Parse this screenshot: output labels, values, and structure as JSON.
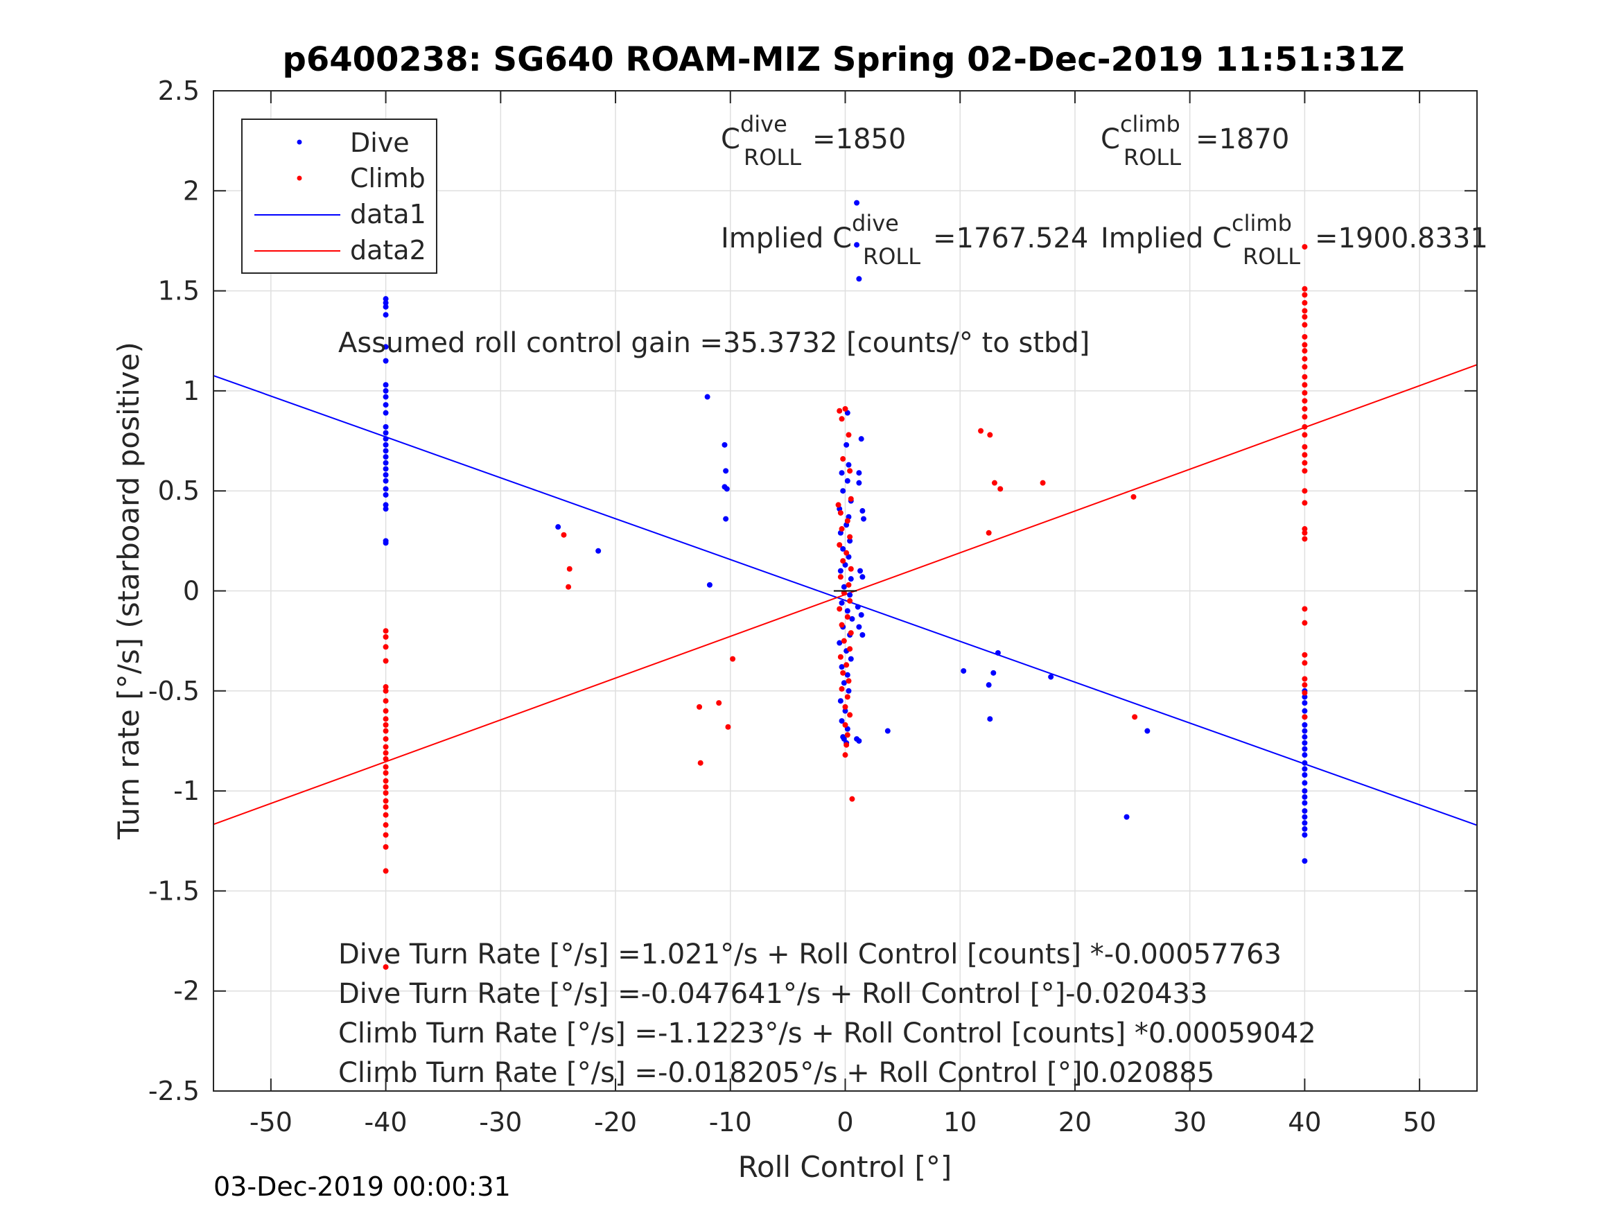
{
  "footer_timestamp": "03-Dec-2019 00:00:31",
  "chart_data": {
    "type": "scatter",
    "title": "p6400238: SG640 ROAM-MIZ Spring 02-Dec-2019 11:51:31Z",
    "xlabel": "Roll Control [°]",
    "ylabel": "Turn rate [°/s] (starboard positive)",
    "xlim": [
      -55,
      55
    ],
    "ylim": [
      -2.5,
      2.5
    ],
    "xticks": [
      -50,
      -40,
      -30,
      -20,
      -10,
      0,
      10,
      20,
      30,
      40,
      50
    ],
    "xtick_labels": [
      "-50",
      "-40",
      "-30",
      "-20",
      "-10",
      "0",
      "10",
      "20",
      "30",
      "40",
      "50"
    ],
    "yticks": [
      2.5,
      2,
      1.5,
      1,
      0.5,
      0,
      -0.5,
      -1,
      -1.5,
      -2,
      -2.5
    ],
    "ytick_labels": [
      "2.5",
      "2",
      "1.5",
      "1",
      "0.5",
      "0",
      "-0.5",
      "-1",
      "-1.5",
      "-2",
      "-2.5"
    ],
    "grid": true,
    "legend_position": "top-left",
    "colors": {
      "dive": "#0000ff",
      "climb": "#ff0000"
    },
    "legend": [
      {
        "label": "Dive",
        "color": "#0000ff",
        "kind": "marker"
      },
      {
        "label": "Climb",
        "color": "#ff0000",
        "kind": "marker"
      },
      {
        "label": "data1",
        "color": "#0000ff",
        "kind": "line"
      },
      {
        "label": "data2",
        "color": "#ff0000",
        "kind": "line"
      }
    ],
    "annotations": {
      "c_dive": {
        "base": "C",
        "sup": "dive",
        "sub": "ROLL",
        "value": "=1850"
      },
      "c_climb": {
        "base": "C",
        "sup": "climb",
        "sub": "ROLL",
        "value": "=1870"
      },
      "implied_dive": {
        "prefix": "Implied C",
        "sup": "dive",
        "sub": "ROLL",
        "value": "=1767.524"
      },
      "implied_climb": {
        "prefix": "Implied C",
        "sup": "climb",
        "sub": "ROLL",
        "value": "=1900.8331"
      },
      "gain": "Assumed roll control gain =35.3732 [counts/° to stbd]",
      "eq_dive_counts": "Dive Turn Rate [°/s] =1.021°/s + Roll Control [counts] *-0.00057763",
      "eq_dive_deg": "Dive Turn Rate [°/s] =-0.047641°/s + Roll Control [°]-0.020433",
      "eq_climb_counts": "Climb Turn Rate [°/s] =-1.1223°/s + Roll Control [counts] *0.00059042",
      "eq_climb_deg": "Climb Turn Rate [°/s] =-0.018205°/s + Roll Control [°]0.020885"
    },
    "fit_lines": [
      {
        "name": "data1",
        "color": "#0000ff",
        "intercept": -0.047641,
        "slope": -0.020433
      },
      {
        "name": "data2",
        "color": "#ff0000",
        "intercept": -0.018205,
        "slope": 0.020885
      }
    ],
    "series": [
      {
        "name": "Dive",
        "color": "#0000ff",
        "points": [
          [
            -40,
            1.46
          ],
          [
            -40,
            1.44
          ],
          [
            -40,
            1.42
          ],
          [
            -40,
            1.38
          ],
          [
            -40,
            1.22
          ],
          [
            -40,
            1.15
          ],
          [
            -40,
            1.03
          ],
          [
            -40,
            1.0
          ],
          [
            -40,
            0.97
          ],
          [
            -40,
            0.93
          ],
          [
            -40,
            0.89
          ],
          [
            -40,
            0.82
          ],
          [
            -40,
            0.79
          ],
          [
            -40,
            0.76
          ],
          [
            -40,
            0.73
          ],
          [
            -40,
            0.7
          ],
          [
            -40,
            0.67
          ],
          [
            -40,
            0.64
          ],
          [
            -40,
            0.61
          ],
          [
            -40,
            0.58
          ],
          [
            -40,
            0.55
          ],
          [
            -40,
            0.51
          ],
          [
            -40,
            0.48
          ],
          [
            -40,
            0.43
          ],
          [
            -40,
            0.41
          ],
          [
            -40,
            0.25
          ],
          [
            -40,
            0.24
          ],
          [
            -25,
            0.32
          ],
          [
            -21.5,
            0.2
          ],
          [
            -12,
            0.97
          ],
          [
            -11.8,
            0.03
          ],
          [
            -10.5,
            0.73
          ],
          [
            -10.4,
            0.6
          ],
          [
            -10.5,
            0.52
          ],
          [
            -10.3,
            0.51
          ],
          [
            -10.4,
            0.36
          ],
          [
            0.2,
            0.89
          ],
          [
            0.1,
            0.73
          ],
          [
            0.3,
            0.63
          ],
          [
            -0.3,
            0.59
          ],
          [
            0.2,
            0.55
          ],
          [
            -0.2,
            0.5
          ],
          [
            0.5,
            0.45
          ],
          [
            -0.5,
            0.41
          ],
          [
            0.3,
            0.37
          ],
          [
            0.1,
            0.33
          ],
          [
            -0.4,
            0.29
          ],
          [
            0.4,
            0.25
          ],
          [
            -0.2,
            0.21
          ],
          [
            0.3,
            0.17
          ],
          [
            0.0,
            0.13
          ],
          [
            -0.4,
            0.1
          ],
          [
            0.5,
            0.06
          ],
          [
            -0.1,
            0.02
          ],
          [
            0.4,
            -0.02
          ],
          [
            -0.3,
            -0.06
          ],
          [
            0.2,
            -0.1
          ],
          [
            0.6,
            -0.14
          ],
          [
            -0.2,
            -0.18
          ],
          [
            0.4,
            -0.22
          ],
          [
            -0.5,
            -0.26
          ],
          [
            0.1,
            -0.3
          ],
          [
            0.5,
            -0.34
          ],
          [
            -0.3,
            -0.38
          ],
          [
            0.2,
            -0.42
          ],
          [
            -0.1,
            -0.46
          ],
          [
            0.3,
            -0.5
          ],
          [
            -0.4,
            -0.55
          ],
          [
            0.0,
            -0.6
          ],
          [
            -0.3,
            -0.65
          ],
          [
            0.2,
            -0.69
          ],
          [
            -0.2,
            -0.73
          ],
          [
            0.1,
            -0.76
          ],
          [
            -0.1,
            -0.74
          ],
          [
            1.0,
            1.94
          ],
          [
            1.0,
            1.73
          ],
          [
            1.2,
            1.56
          ],
          [
            1.4,
            0.76
          ],
          [
            1.2,
            0.59
          ],
          [
            1.2,
            0.54
          ],
          [
            1.5,
            0.4
          ],
          [
            1.6,
            0.36
          ],
          [
            1.3,
            0.1
          ],
          [
            1.5,
            0.07
          ],
          [
            1.1,
            -0.08
          ],
          [
            1.4,
            -0.12
          ],
          [
            1.2,
            -0.18
          ],
          [
            1.5,
            -0.22
          ],
          [
            1.0,
            -0.74
          ],
          [
            1.2,
            -0.75
          ],
          [
            3.7,
            -0.7
          ],
          [
            10.3,
            -0.4
          ],
          [
            12.5,
            -0.47
          ],
          [
            12.6,
            -0.64
          ],
          [
            12.9,
            -0.41
          ],
          [
            13.3,
            -0.31
          ],
          [
            17.9,
            -0.43
          ],
          [
            24.5,
            -1.13
          ],
          [
            26.3,
            -0.7
          ],
          [
            40,
            -0.5
          ],
          [
            40,
            -0.53
          ],
          [
            40,
            -0.56
          ],
          [
            40,
            -0.6
          ],
          [
            40,
            -0.63
          ],
          [
            40,
            -0.67
          ],
          [
            40,
            -0.7
          ],
          [
            40,
            -0.73
          ],
          [
            40,
            -0.76
          ],
          [
            40,
            -0.79
          ],
          [
            40,
            -0.82
          ],
          [
            40,
            -0.86
          ],
          [
            40,
            -0.89
          ],
          [
            40,
            -0.92
          ],
          [
            40,
            -0.96
          ],
          [
            40,
            -1.0
          ],
          [
            40,
            -1.03
          ],
          [
            40,
            -1.06
          ],
          [
            40,
            -1.1
          ],
          [
            40,
            -1.13
          ],
          [
            40,
            -1.16
          ],
          [
            40,
            -1.19
          ],
          [
            40,
            -1.22
          ],
          [
            40,
            -1.35
          ]
        ]
      },
      {
        "name": "Climb",
        "color": "#ff0000",
        "points": [
          [
            -40,
            -0.2
          ],
          [
            -40,
            -0.23
          ],
          [
            -40,
            -0.28
          ],
          [
            -40,
            -0.35
          ],
          [
            -40,
            -0.48
          ],
          [
            -40,
            -0.5
          ],
          [
            -40,
            -0.55
          ],
          [
            -40,
            -0.6
          ],
          [
            -40,
            -0.64
          ],
          [
            -40,
            -0.67
          ],
          [
            -40,
            -0.7
          ],
          [
            -40,
            -0.74
          ],
          [
            -40,
            -0.78
          ],
          [
            -40,
            -0.81
          ],
          [
            -40,
            -0.84
          ],
          [
            -40,
            -0.88
          ],
          [
            -40,
            -0.91
          ],
          [
            -40,
            -0.95
          ],
          [
            -40,
            -0.98
          ],
          [
            -40,
            -1.01
          ],
          [
            -40,
            -1.05
          ],
          [
            -40,
            -1.08
          ],
          [
            -40,
            -1.12
          ],
          [
            -40,
            -1.17
          ],
          [
            -40,
            -1.22
          ],
          [
            -40,
            -1.28
          ],
          [
            -40,
            -1.4
          ],
          [
            -40,
            -1.88
          ],
          [
            -24.5,
            0.28
          ],
          [
            -24,
            0.11
          ],
          [
            -24.1,
            0.02
          ],
          [
            -12.7,
            -0.58
          ],
          [
            -12.6,
            -0.86
          ],
          [
            -11,
            -0.56
          ],
          [
            -10.2,
            -0.68
          ],
          [
            -9.8,
            -0.34
          ],
          [
            -0.5,
            0.9
          ],
          [
            0.0,
            0.91
          ],
          [
            -0.3,
            0.86
          ],
          [
            0.3,
            0.78
          ],
          [
            -0.2,
            0.66
          ],
          [
            0.4,
            0.6
          ],
          [
            -0.6,
            0.43
          ],
          [
            0.5,
            0.46
          ],
          [
            -0.4,
            0.39
          ],
          [
            0.2,
            0.35
          ],
          [
            -0.3,
            0.31
          ],
          [
            0.4,
            0.27
          ],
          [
            -0.5,
            0.23
          ],
          [
            0.1,
            0.19
          ],
          [
            -0.2,
            0.15
          ],
          [
            0.5,
            0.11
          ],
          [
            -0.4,
            0.07
          ],
          [
            0.3,
            0.03
          ],
          [
            -0.1,
            -0.01
          ],
          [
            0.4,
            -0.05
          ],
          [
            -0.5,
            -0.09
          ],
          [
            0.2,
            -0.13
          ],
          [
            -0.3,
            -0.17
          ],
          [
            0.5,
            -0.21
          ],
          [
            -0.1,
            -0.25
          ],
          [
            0.4,
            -0.29
          ],
          [
            -0.4,
            -0.33
          ],
          [
            0.1,
            -0.37
          ],
          [
            -0.2,
            -0.41
          ],
          [
            0.3,
            -0.45
          ],
          [
            -0.3,
            -0.49
          ],
          [
            0.2,
            -0.53
          ],
          [
            0.0,
            -0.58
          ],
          [
            0.4,
            -0.62
          ],
          [
            0.0,
            -0.67
          ],
          [
            0.2,
            -0.72
          ],
          [
            0.1,
            -0.77
          ],
          [
            0.0,
            -0.82
          ],
          [
            0.6,
            -1.04
          ],
          [
            11.8,
            0.8
          ],
          [
            12.5,
            0.29
          ],
          [
            12.6,
            0.78
          ],
          [
            13.0,
            0.54
          ],
          [
            13.5,
            0.51
          ],
          [
            17.2,
            0.54
          ],
          [
            25.1,
            0.47
          ],
          [
            25.2,
            -0.63
          ],
          [
            40,
            1.51
          ],
          [
            40,
            1.48
          ],
          [
            40,
            1.44
          ],
          [
            40,
            1.4
          ],
          [
            40,
            1.37
          ],
          [
            40,
            1.33
          ],
          [
            40,
            1.27
          ],
          [
            40,
            1.23
          ],
          [
            40,
            1.2
          ],
          [
            40,
            1.16
          ],
          [
            40,
            1.12
          ],
          [
            40,
            1.07
          ],
          [
            40,
            1.03
          ],
          [
            40,
            0.99
          ],
          [
            40,
            0.95
          ],
          [
            40,
            0.91
          ],
          [
            40,
            0.87
          ],
          [
            40,
            0.82
          ],
          [
            40,
            0.78
          ],
          [
            40,
            0.72
          ],
          [
            40,
            0.68
          ],
          [
            40,
            0.64
          ],
          [
            40,
            0.6
          ],
          [
            40,
            0.5
          ],
          [
            40,
            0.44
          ],
          [
            40,
            0.31
          ],
          [
            40,
            0.29
          ],
          [
            40,
            0.26
          ],
          [
            40,
            -0.09
          ],
          [
            40,
            -0.16
          ],
          [
            40,
            -0.32
          ],
          [
            40,
            -0.36
          ],
          [
            40,
            -0.44
          ],
          [
            40,
            -0.47
          ],
          [
            40,
            -0.51
          ],
          [
            40,
            -0.63
          ],
          [
            40,
            1.72
          ]
        ]
      }
    ]
  }
}
